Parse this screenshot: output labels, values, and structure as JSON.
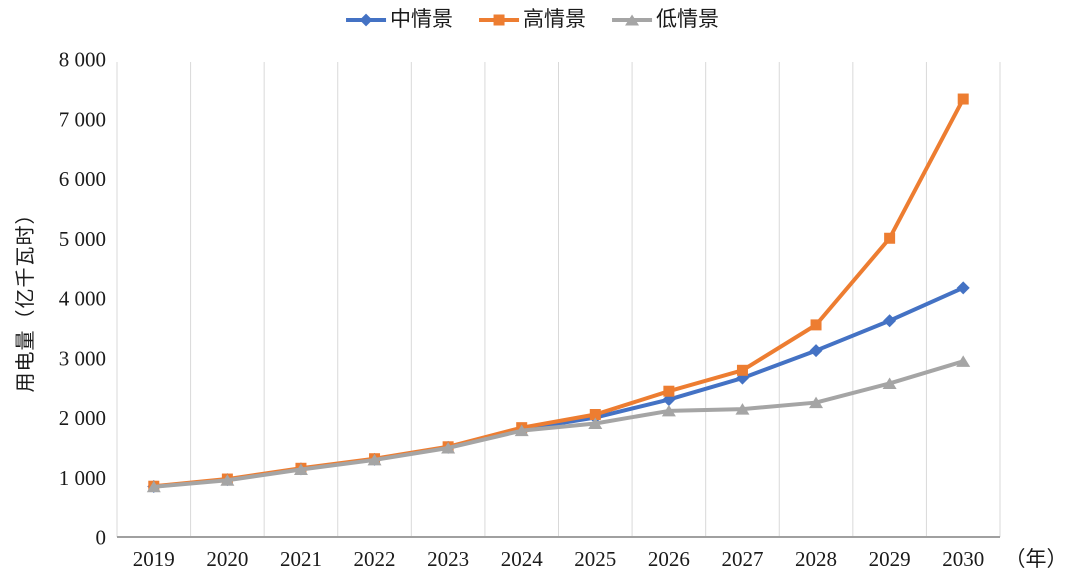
{
  "chart_data": {
    "type": "line",
    "title": "",
    "ylabel": "用电量（亿千瓦时）",
    "xlabel": "",
    "x_unit": "（年）",
    "categories": [
      "2019",
      "2020",
      "2021",
      "2022",
      "2023",
      "2024",
      "2025",
      "2026",
      "2027",
      "2028",
      "2029",
      "2030"
    ],
    "ylim": [
      0,
      8000
    ],
    "y_ticks": {
      "values": [
        0,
        1000,
        2000,
        3000,
        4000,
        5000,
        6000,
        7000,
        8000
      ],
      "labels": [
        "0",
        "1 000",
        "2 000",
        "3 000",
        "4 000",
        "5 000",
        "6 000",
        "7 000",
        "8 000"
      ]
    },
    "grid": "vertical-only",
    "legend_position": "top",
    "gridline_color": "#D9D9D9",
    "axis_color": "#A0A0A0",
    "series": [
      {
        "id": "mid",
        "name": "中情景",
        "marker": "diamond",
        "color": "#4472C4",
        "values": [
          845,
          960,
          1140,
          1300,
          1500,
          1800,
          2000,
          2300,
          2660,
          3120,
          3620,
          4170
        ]
      },
      {
        "id": "high",
        "name": "高情景",
        "marker": "square",
        "color": "#ED7D31",
        "values": [
          850,
          970,
          1150,
          1310,
          1510,
          1830,
          2050,
          2440,
          2790,
          3550,
          5000,
          7330
        ]
      },
      {
        "id": "low",
        "name": "低情景",
        "marker": "triangle",
        "color": "#A5A5A5",
        "values": [
          840,
          950,
          1130,
          1290,
          1490,
          1780,
          1900,
          2110,
          2140,
          2250,
          2570,
          2940
        ]
      }
    ]
  }
}
